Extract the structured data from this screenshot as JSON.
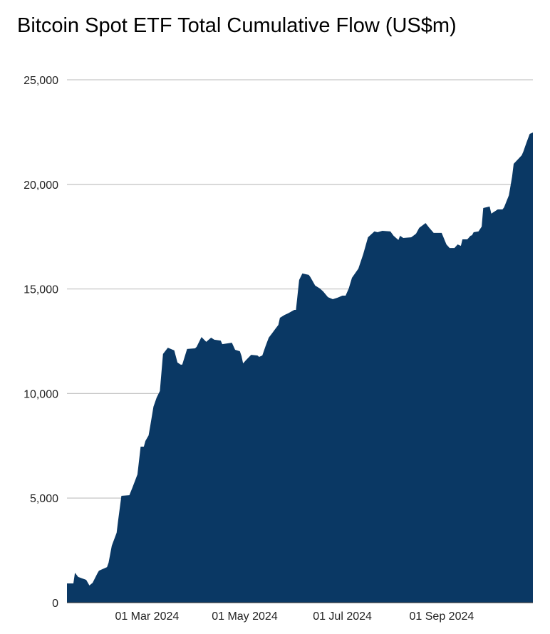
{
  "chart_data": {
    "type": "area",
    "title": "Bitcoin Spot ETF Total Cumulative Flow (US$m)",
    "xlabel": "",
    "ylabel": "",
    "ylim": [
      0,
      25000
    ],
    "yticks": [
      0,
      5000,
      10000,
      15000,
      20000,
      25000
    ],
    "ytick_labels": [
      "0",
      "5,000",
      "10,000",
      "15,000",
      "20,000",
      "25,000"
    ],
    "xlim": [
      "2024-01-11",
      "2024-10-28"
    ],
    "xticks": [
      "2024-03-01",
      "2024-05-01",
      "2024-07-01",
      "2024-09-01"
    ],
    "xtick_labels": [
      "01 Mar 2024",
      "01 May 2024",
      "01 Jul 2024",
      "01 Sep 2024"
    ],
    "grid": true,
    "legend": "none",
    "fill_color": "#0a3864",
    "grid_color": "#c8c8c8",
    "x": [
      "2024-01-11",
      "2024-01-15",
      "2024-01-16",
      "2024-01-18",
      "2024-01-23",
      "2024-01-25",
      "2024-01-27",
      "2024-01-30",
      "2024-01-31",
      "2024-02-05",
      "2024-02-06",
      "2024-02-08",
      "2024-02-11",
      "2024-02-12",
      "2024-02-14",
      "2024-02-19",
      "2024-02-21",
      "2024-02-24",
      "2024-02-26",
      "2024-02-28",
      "2024-02-29",
      "2024-03-02",
      "2024-03-03",
      "2024-03-05",
      "2024-03-07",
      "2024-03-09",
      "2024-03-11",
      "2024-03-14",
      "2024-03-18",
      "2024-03-20",
      "2024-03-22",
      "2024-03-23",
      "2024-03-26",
      "2024-03-31",
      "2024-04-01",
      "2024-04-04",
      "2024-04-07",
      "2024-04-10",
      "2024-04-12",
      "2024-04-16",
      "2024-04-17",
      "2024-04-23",
      "2024-04-25",
      "2024-04-28",
      "2024-04-29",
      "2024-04-30",
      "2024-05-02",
      "2024-05-05",
      "2024-05-09",
      "2024-05-10",
      "2024-05-12",
      "2024-05-14",
      "2024-05-16",
      "2024-05-18",
      "2024-05-20",
      "2024-05-22",
      "2024-05-23",
      "2024-05-26",
      "2024-05-28",
      "2024-06-01",
      "2024-06-02",
      "2024-06-04",
      "2024-06-06",
      "2024-06-10",
      "2024-06-11",
      "2024-06-14",
      "2024-06-17",
      "2024-06-19",
      "2024-06-22",
      "2024-06-25",
      "2024-06-28",
      "2024-07-01",
      "2024-07-03",
      "2024-07-05",
      "2024-07-07",
      "2024-07-11",
      "2024-07-14",
      "2024-07-17",
      "2024-07-21",
      "2024-07-23",
      "2024-07-26",
      "2024-07-31",
      "2024-08-02",
      "2024-08-05",
      "2024-08-06",
      "2024-08-08",
      "2024-08-13",
      "2024-08-16",
      "2024-08-18",
      "2024-08-22",
      "2024-08-24",
      "2024-08-27",
      "2024-09-01",
      "2024-09-04",
      "2024-09-06",
      "2024-09-09",
      "2024-09-11",
      "2024-09-13",
      "2024-09-14",
      "2024-09-17",
      "2024-09-19",
      "2024-09-20",
      "2024-09-21",
      "2024-09-24",
      "2024-09-26",
      "2024-09-27",
      "2024-10-01",
      "2024-10-02",
      "2024-10-06",
      "2024-10-09",
      "2024-10-10",
      "2024-10-13",
      "2024-10-15",
      "2024-10-16",
      "2024-10-21",
      "2024-10-22",
      "2024-10-24",
      "2024-10-26",
      "2024-10-28"
    ],
    "values": [
      920,
      920,
      1430,
      1230,
      1090,
      820,
      950,
      1400,
      1530,
      1700,
      1910,
      2720,
      3340,
      3950,
      5110,
      5140,
      5520,
      6130,
      7460,
      7460,
      7730,
      8000,
      8450,
      9370,
      9810,
      10120,
      11890,
      12190,
      12060,
      11480,
      11380,
      11380,
      12130,
      12160,
      12230,
      12700,
      12470,
      12670,
      12570,
      12530,
      12360,
      12430,
      12090,
      12020,
      11790,
      11440,
      11610,
      11850,
      11820,
      11750,
      11820,
      12260,
      12670,
      12870,
      13080,
      13280,
      13620,
      13760,
      13830,
      14000,
      14000,
      15430,
      15740,
      15670,
      15570,
      15160,
      15020,
      14880,
      14610,
      14510,
      14580,
      14680,
      14680,
      15020,
      15530,
      15970,
      16660,
      17470,
      17750,
      17710,
      17780,
      17750,
      17540,
      17340,
      17540,
      17440,
      17470,
      17640,
      17920,
      18150,
      17950,
      17680,
      17680,
      17130,
      16960,
      16960,
      17130,
      17060,
      17370,
      17370,
      17540,
      17570,
      17710,
      17750,
      17980,
      18870,
      18940,
      18600,
      18800,
      18800,
      18900,
      19480,
      20370,
      20980,
      21390,
      21560,
      22000,
      22410,
      22480
    ]
  }
}
